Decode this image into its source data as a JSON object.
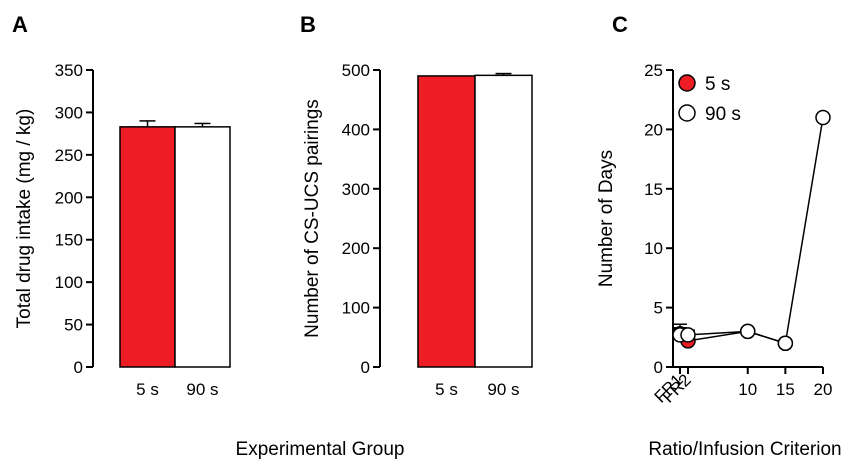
{
  "figure": {
    "shared_xlabel": "Experimental Group",
    "colors": {
      "red": "#ee1c24",
      "white": "#ffffff",
      "black": "#000000"
    }
  },
  "chart_data": [
    {
      "panel": "A",
      "type": "bar",
      "categories": [
        "5 s",
        "90 s"
      ],
      "values": [
        283,
        283
      ],
      "errors": [
        7,
        4
      ],
      "colors": [
        "#ee1c24",
        "#ffffff"
      ],
      "ylabel": "Total drug intake (mg / kg)",
      "xlabel": "",
      "ylim": [
        0,
        350
      ],
      "yticks": [
        0,
        50,
        100,
        150,
        200,
        250,
        300,
        350
      ],
      "grid": false
    },
    {
      "panel": "B",
      "type": "bar",
      "categories": [
        "5 s",
        "90 s"
      ],
      "values": [
        490,
        491
      ],
      "errors": [
        0,
        3
      ],
      "colors": [
        "#ee1c24",
        "#ffffff"
      ],
      "ylabel": "Number of CS-UCS pairings",
      "xlabel": "",
      "ylim": [
        0,
        500
      ],
      "yticks": [
        0,
        100,
        200,
        300,
        400,
        500
      ],
      "grid": false
    },
    {
      "panel": "C",
      "type": "line",
      "xlabel": "Ratio/Infusion Criterion",
      "ylabel": "Number of Days",
      "ylim": [
        0,
        25
      ],
      "yticks": [
        0,
        5,
        10,
        15,
        20,
        25
      ],
      "xticks": [
        {
          "value": 1,
          "label": "FR1"
        },
        {
          "value": 2,
          "label": "FR2"
        },
        {
          "value": 10,
          "label": "10"
        },
        {
          "value": 15,
          "label": "15"
        },
        {
          "value": 20,
          "label": "20"
        }
      ],
      "legend_position": "top-left",
      "grid": false,
      "series": [
        {
          "name": "5 s",
          "color": "#ee1c24",
          "x": [
            1,
            2,
            10,
            15
          ],
          "y": [
            2.8,
            2.2,
            3.0,
            2.0
          ],
          "errors": [
            0.8,
            0.4,
            0,
            0
          ]
        },
        {
          "name": "90 s",
          "color": "#ffffff",
          "x": [
            1,
            2,
            10,
            15,
            20
          ],
          "y": [
            2.7,
            2.7,
            3.0,
            2.0,
            21.0
          ],
          "errors": [
            0.6,
            0.4,
            0,
            0,
            0
          ]
        }
      ]
    }
  ]
}
